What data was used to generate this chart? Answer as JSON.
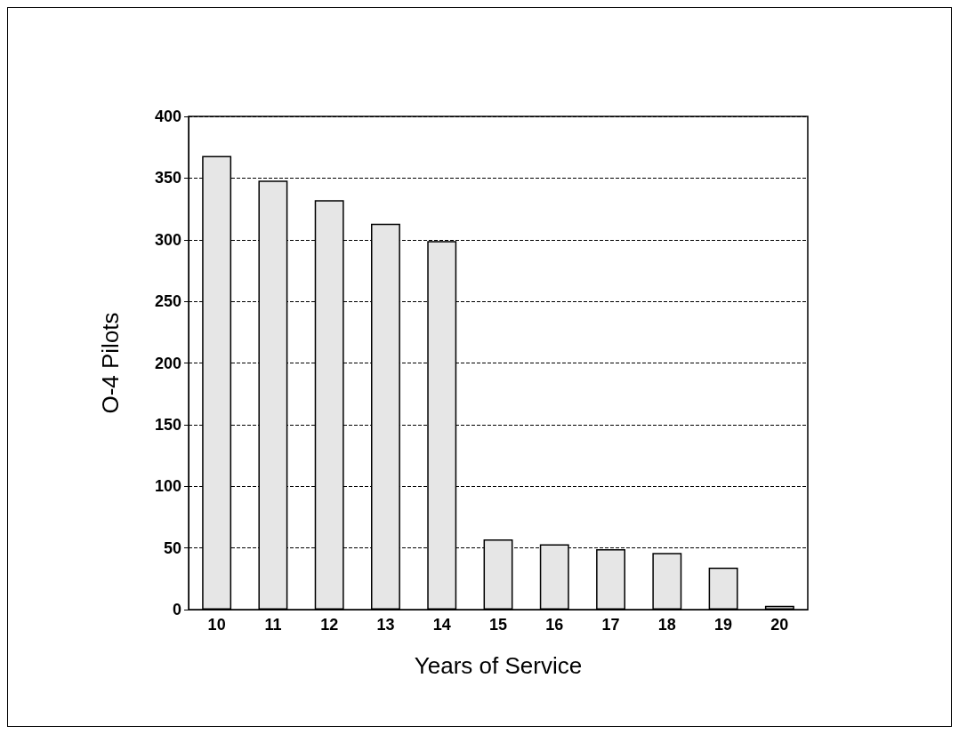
{
  "chart_data": {
    "type": "bar",
    "xlabel": "Years of Service",
    "ylabel": "O-4 Pilots",
    "categories": [
      "10",
      "11",
      "12",
      "13",
      "14",
      "15",
      "16",
      "17",
      "18",
      "19",
      "20"
    ],
    "values": [
      368,
      348,
      332,
      313,
      299,
      57,
      53,
      49,
      46,
      34,
      3
    ],
    "color": "#e6e6e6",
    "ylim": [
      0,
      400
    ],
    "yticks": [
      0,
      50,
      100,
      150,
      200,
      250,
      300,
      350,
      400
    ],
    "grid": "y"
  }
}
